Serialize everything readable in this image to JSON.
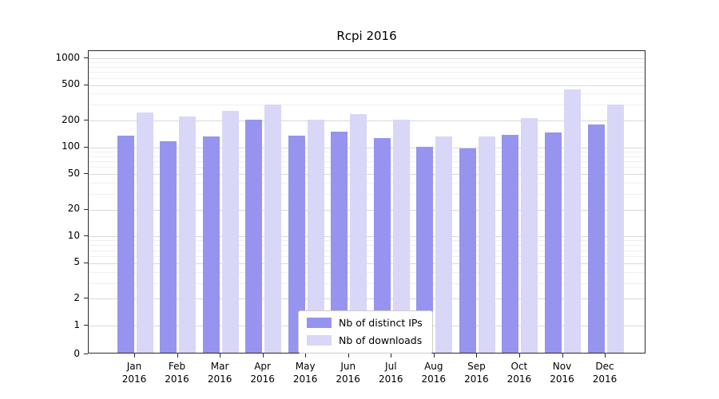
{
  "title": "Rcpi 2016",
  "chart_data": {
    "type": "bar",
    "title": "Rcpi 2016",
    "categories": [
      "Jan 2016",
      "Feb 2016",
      "Mar 2016",
      "Apr 2016",
      "May 2016",
      "Jun 2016",
      "Jul 2016",
      "Aug 2016",
      "Sep 2016",
      "Oct 2016",
      "Nov 2016",
      "Dec 2016"
    ],
    "series": [
      {
        "name": "Nb of distinct IPs",
        "color": "#9694ee",
        "values": [
          130,
          112,
          127,
          195,
          130,
          145,
          122,
          97,
          93,
          132,
          142,
          172
        ]
      },
      {
        "name": "Nb of downloads",
        "color": "#d8d7f7",
        "values": [
          235,
          212,
          247,
          290,
          198,
          228,
          198,
          128,
          127,
          203,
          430,
          292
        ]
      }
    ],
    "xlabel": "",
    "ylabel": "",
    "yscale": "symlog",
    "yticks": [
      1000,
      500,
      200,
      100,
      50,
      20,
      10,
      5,
      2,
      1,
      0
    ],
    "ylim": [
      0,
      1200
    ],
    "grid": true,
    "legend_position": "lower center"
  },
  "legend": {
    "items": [
      {
        "label": "Nb of distinct IPs",
        "color": "#9694ee"
      },
      {
        "label": "Nb of downloads",
        "color": "#d8d7f7"
      }
    ]
  }
}
